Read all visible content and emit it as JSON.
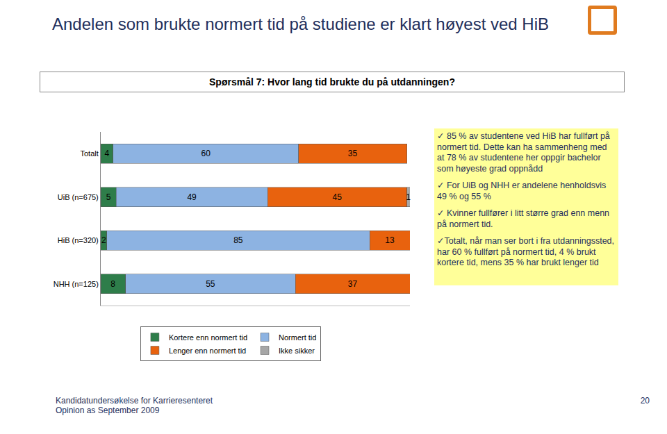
{
  "chart_data": {
    "type": "bar",
    "title": "Andelen som brukte normert tid på studiene er klart høyest ved HiB",
    "subtitle": "Spørsmål 7: Hvor lang tid brukte du på utdanningen?",
    "orientation": "horizontal",
    "stacked": true,
    "data_labels": true,
    "tick_labels": "y",
    "legend": "bottom",
    "xlim": [
      0,
      100
    ],
    "categories": [
      "Totalt",
      "UiB (n=675)",
      "HiB (n=320)",
      "NHH (n=125)"
    ],
    "series": [
      {
        "name": "Kortere enn normert tid",
        "color": "#2e7d4a",
        "values": [
          4,
          5,
          2,
          8
        ]
      },
      {
        "name": "Normert tid",
        "color": "#8db3e2",
        "values": [
          60,
          49,
          85,
          55
        ]
      },
      {
        "name": "Lenger enn normert tid",
        "color": "#e8620e",
        "values": [
          35,
          45,
          13,
          37
        ]
      },
      {
        "name": "Ikke sikker",
        "color": "#a6a6a6",
        "values": [
          null,
          1,
          0,
          null
        ]
      }
    ]
  },
  "notes": [
    "✓ 85 % av studentene ved HiB har fullført på normert tid. Dette kan ha sammenheng med at 78 % av studentene her oppgir bachelor som høyeste grad oppnådd",
    "✓ For UiB og NHH er andelene henholdsvis 49 % og 55 %",
    "✓ Kvinner fullfører i litt større grad enn menn på normert tid.",
    "✓Totalt, når man ser bort i fra utdanningssted, har 60 % fullført på normert tid, 4 % brukt kortere tid, mens 35 % har brukt lenger tid"
  ],
  "footer": {
    "lines": [
      "Kandidatundersøkelse for Karrieresenteret",
      "Opinion as September 2009"
    ],
    "page": "20"
  }
}
